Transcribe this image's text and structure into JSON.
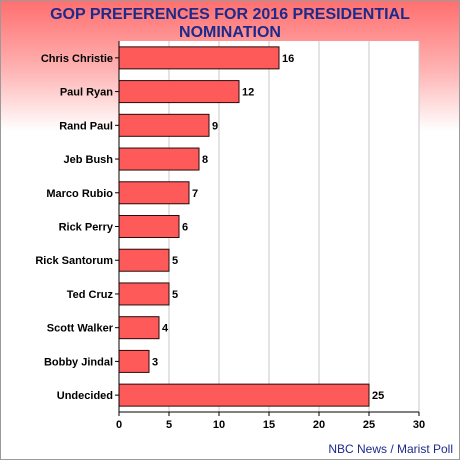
{
  "chart_data": {
    "type": "bar",
    "orientation": "horizontal",
    "title_lines": [
      "GOP PREFERENCES FOR 2016 PRESIDENTIAL",
      "NOMINATION"
    ],
    "categories": [
      "Chris Christie",
      "Paul Ryan",
      "Rand Paul",
      "Jeb Bush",
      "Marco Rubio",
      "Rick Perry",
      "Rick Santorum",
      "Ted Cruz",
      "Scott Walker",
      "Bobby Jindal",
      "Undecided"
    ],
    "values": [
      16,
      12,
      9,
      8,
      7,
      6,
      5,
      5,
      4,
      3,
      25
    ],
    "xlim": [
      0,
      30
    ],
    "xticks": [
      0,
      5,
      10,
      15,
      20,
      25,
      30
    ],
    "grid": "vertical",
    "bar_color": "#ff5a5a",
    "bar_stroke": "#2a0a0a",
    "title_color": "#1c2a8c"
  },
  "source": "NBC News / Marist Poll"
}
